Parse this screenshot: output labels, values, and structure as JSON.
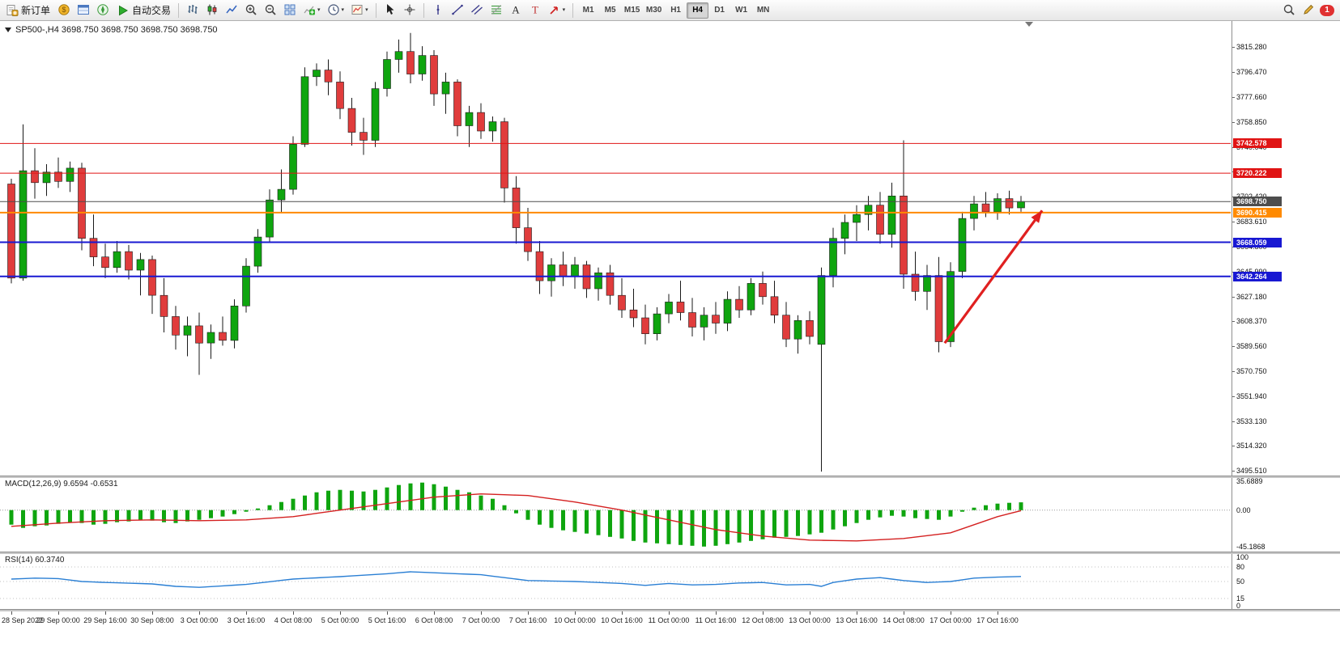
{
  "window": {
    "notification_count": "1"
  },
  "toolbar": {
    "new_order": {
      "label": "新订单",
      "icon": "new-order-icon"
    },
    "standard_icons": [
      {
        "name": "market-watch-icon"
      },
      {
        "name": "data-window-icon"
      },
      {
        "name": "navigator-icon"
      }
    ],
    "auto_trading": {
      "label": "自动交易",
      "icon": "autotrade-play-icon"
    },
    "chart_icons": [
      {
        "name": "bar-chart-icon"
      },
      {
        "name": "candlestick-chart-icon"
      },
      {
        "name": "line-chart-icon"
      },
      {
        "name": "zoom-in-icon"
      },
      {
        "name": "zoom-out-icon"
      },
      {
        "name": "tile-windows-icon"
      },
      {
        "name": "indicators-icon",
        "dropdown": true
      },
      {
        "name": "periods-icon",
        "dropdown": true
      },
      {
        "name": "templates-icon",
        "dropdown": true
      }
    ],
    "pointer_icons": [
      {
        "name": "cursor-icon"
      },
      {
        "name": "crosshair-icon"
      }
    ],
    "line_tool_icons": [
      {
        "name": "vertical-line-icon"
      },
      {
        "name": "trendline-icon"
      },
      {
        "name": "channel-icon"
      },
      {
        "name": "fibonacci-icon"
      },
      {
        "name": "text-icon"
      },
      {
        "name": "label-icon"
      },
      {
        "name": "arrows-icon",
        "dropdown": true
      }
    ],
    "timeframes": [
      "M1",
      "M5",
      "M15",
      "M30",
      "H1",
      "H4",
      "D1",
      "W1",
      "MN"
    ],
    "active_timeframe": "H4",
    "right_icons": [
      {
        "name": "search-icon"
      },
      {
        "name": "edit-icon"
      }
    ]
  },
  "chart": {
    "title_text": "SP500-,H4 3698.750 3698.750 3698.750 3698.750"
  },
  "macd": {
    "label": "MACD(12,26,9) 9.6594 -0.6531",
    "scale_top": "35.6889",
    "scale_zero": "0.00",
    "scale_bottom": "-45.1868"
  },
  "rsi": {
    "label": "RSI(14) 60.3740",
    "scale": [
      "100",
      "80",
      "50",
      "15",
      "0"
    ],
    "levels": [
      80,
      50,
      15
    ]
  },
  "chart_data": {
    "type": "candlestick-with-indicators",
    "symbol": "SP500-",
    "timeframe": "H4",
    "price_range": [
      3492,
      3835
    ],
    "bars_per_label": 4,
    "time_labels": [
      "28 Sep 2022",
      "29 Sep 00:00",
      "29 Sep 16:00",
      "30 Sep 08:00",
      "3 Oct 00:00",
      "3 Oct 16:00",
      "4 Oct 08:00",
      "5 Oct 00:00",
      "5 Oct 16:00",
      "6 Oct 08:00",
      "7 Oct 00:00",
      "7 Oct 16:00",
      "10 Oct 00:00",
      "10 Oct 16:00",
      "11 Oct 00:00",
      "11 Oct 16:00",
      "12 Oct 08:00",
      "13 Oct 00:00",
      "13 Oct 16:00",
      "14 Oct 08:00",
      "17 Oct 00:00",
      "17 Oct 16:00"
    ],
    "price_axis_labels": [
      "3815.280",
      "3796.470",
      "3777.660",
      "3758.850",
      "3740.040",
      "3721.230",
      "3702.420",
      "3683.610",
      "3664.800",
      "3645.990",
      "3627.180",
      "3608.370",
      "3589.560",
      "3570.750",
      "3551.940",
      "3533.130",
      "3514.320",
      "3495.510"
    ],
    "levels": [
      {
        "price": 3742.578,
        "label": "3742.578",
        "color": "#e01414",
        "width": 1
      },
      {
        "price": 3720.222,
        "label": "3720.222",
        "color": "#e01414",
        "width": 1
      },
      {
        "price": 3698.75,
        "label": "3698.750",
        "color": "#4d4d4d",
        "width": 1,
        "role": "current-price-line"
      },
      {
        "price": 3690.415,
        "label": "3690.415",
        "color": "#ff8a00",
        "width": 2
      },
      {
        "price": 3668.059,
        "label": "3668.059",
        "color": "#1818d2",
        "width": 2
      },
      {
        "price": 3642.264,
        "label": "3642.264",
        "color": "#1818d2",
        "width": 2
      }
    ],
    "annotation_arrow": {
      "from_bar": 79.5,
      "from_price": 3592,
      "to_bar": 87.8,
      "to_price": 3692,
      "color": "#e02020"
    },
    "colors": {
      "up": "#0fa50f",
      "down": "#e03c3c",
      "wick": "#1a1a1a",
      "macd_hist": "#0fa50f",
      "macd_signal": "#d42020",
      "rsi_line": "#2a7fd4"
    },
    "candles": [
      [
        3712,
        3716,
        3637,
        3641
      ],
      [
        3641,
        3757,
        3639,
        3722
      ],
      [
        3722,
        3739,
        3701,
        3713
      ],
      [
        3713,
        3727,
        3703,
        3721
      ],
      [
        3721,
        3732,
        3709,
        3714
      ],
      [
        3714,
        3729,
        3706,
        3724
      ],
      [
        3724,
        3728,
        3662,
        3671
      ],
      [
        3671,
        3689,
        3650,
        3657
      ],
      [
        3657,
        3667,
        3641,
        3649
      ],
      [
        3649,
        3669,
        3645,
        3661
      ],
      [
        3661,
        3666,
        3640,
        3647
      ],
      [
        3647,
        3660,
        3628,
        3655
      ],
      [
        3655,
        3658,
        3614,
        3628
      ],
      [
        3628,
        3641,
        3600,
        3612
      ],
      [
        3612,
        3620,
        3587,
        3598
      ],
      [
        3598,
        3612,
        3582,
        3605
      ],
      [
        3605,
        3615,
        3568,
        3592
      ],
      [
        3592,
        3606,
        3580,
        3600
      ],
      [
        3600,
        3612,
        3590,
        3594
      ],
      [
        3594,
        3625,
        3588,
        3620
      ],
      [
        3620,
        3656,
        3615,
        3650
      ],
      [
        3650,
        3678,
        3645,
        3672
      ],
      [
        3672,
        3708,
        3668,
        3700
      ],
      [
        3700,
        3723,
        3690,
        3708
      ],
      [
        3708,
        3748,
        3704,
        3742
      ],
      [
        3742,
        3800,
        3740,
        3793
      ],
      [
        3793,
        3803,
        3786,
        3798
      ],
      [
        3798,
        3806,
        3779,
        3789
      ],
      [
        3789,
        3797,
        3761,
        3769
      ],
      [
        3769,
        3777,
        3741,
        3751
      ],
      [
        3751,
        3762,
        3734,
        3745
      ],
      [
        3745,
        3789,
        3740,
        3784
      ],
      [
        3784,
        3812,
        3778,
        3806
      ],
      [
        3806,
        3821,
        3796,
        3812
      ],
      [
        3812,
        3826,
        3788,
        3795
      ],
      [
        3795,
        3816,
        3790,
        3809
      ],
      [
        3809,
        3813,
        3771,
        3780
      ],
      [
        3780,
        3796,
        3765,
        3789
      ],
      [
        3789,
        3791,
        3748,
        3756
      ],
      [
        3756,
        3771,
        3740,
        3766
      ],
      [
        3766,
        3773,
        3746,
        3752
      ],
      [
        3752,
        3763,
        3744,
        3759
      ],
      [
        3759,
        3762,
        3698,
        3709
      ],
      [
        3709,
        3718,
        3667,
        3679
      ],
      [
        3679,
        3694,
        3654,
        3661
      ],
      [
        3661,
        3669,
        3629,
        3639
      ],
      [
        3639,
        3656,
        3627,
        3651
      ],
      [
        3651,
        3661,
        3635,
        3642
      ],
      [
        3642,
        3657,
        3633,
        3651
      ],
      [
        3651,
        3654,
        3626,
        3633
      ],
      [
        3633,
        3649,
        3624,
        3645
      ],
      [
        3645,
        3651,
        3621,
        3628
      ],
      [
        3628,
        3641,
        3611,
        3617
      ],
      [
        3617,
        3633,
        3604,
        3611
      ],
      [
        3611,
        3621,
        3591,
        3599
      ],
      [
        3599,
        3619,
        3594,
        3614
      ],
      [
        3614,
        3629,
        3607,
        3623
      ],
      [
        3623,
        3639,
        3609,
        3615
      ],
      [
        3615,
        3626,
        3597,
        3604
      ],
      [
        3604,
        3619,
        3594,
        3613
      ],
      [
        3613,
        3623,
        3599,
        3607
      ],
      [
        3607,
        3631,
        3601,
        3625
      ],
      [
        3625,
        3635,
        3611,
        3617
      ],
      [
        3617,
        3641,
        3613,
        3637
      ],
      [
        3637,
        3646,
        3621,
        3627
      ],
      [
        3627,
        3639,
        3607,
        3613
      ],
      [
        3613,
        3623,
        3589,
        3595
      ],
      [
        3595,
        3613,
        3584,
        3609
      ],
      [
        3609,
        3616,
        3591,
        3597
      ],
      [
        3591,
        3649,
        3495,
        3643
      ],
      [
        3643,
        3679,
        3634,
        3671
      ],
      [
        3671,
        3689,
        3659,
        3683
      ],
      [
        3683,
        3696,
        3669,
        3689
      ],
      [
        3689,
        3703,
        3677,
        3696
      ],
      [
        3696,
        3706,
        3667,
        3674
      ],
      [
        3674,
        3713,
        3664,
        3703
      ],
      [
        3703,
        3745,
        3633,
        3644
      ],
      [
        3644,
        3661,
        3624,
        3631
      ],
      [
        3631,
        3651,
        3617,
        3643
      ],
      [
        3643,
        3657,
        3585,
        3593
      ],
      [
        3593,
        3653,
        3589,
        3646
      ],
      [
        3646,
        3691,
        3641,
        3686
      ],
      [
        3686,
        3703,
        3677,
        3697
      ],
      [
        3697,
        3706,
        3687,
        3691
      ],
      [
        3691,
        3705,
        3685,
        3701
      ],
      [
        3701,
        3707,
        3689,
        3694
      ],
      [
        3694,
        3703,
        3691,
        3698.75
      ]
    ],
    "macd": {
      "hist": [
        -18,
        -22,
        -20,
        -19,
        -17,
        -15,
        -16,
        -18,
        -17,
        -15,
        -14,
        -12,
        -13,
        -15,
        -16,
        -14,
        -12,
        -10,
        -8,
        -5,
        -2,
        2,
        6,
        10,
        14,
        18,
        22,
        24,
        25,
        24,
        23,
        25,
        28,
        31,
        33,
        34,
        32,
        29,
        25,
        22,
        18,
        14,
        6,
        -4,
        -12,
        -18,
        -22,
        -25,
        -27,
        -29,
        -31,
        -33,
        -35,
        -38,
        -40,
        -41,
        -42,
        -43,
        -44,
        -45,
        -44,
        -42,
        -40,
        -38,
        -36,
        -34,
        -33,
        -32,
        -30,
        -28,
        -24,
        -20,
        -16,
        -12,
        -9,
        -7,
        -8,
        -10,
        -11,
        -12,
        -8,
        -2,
        3,
        6,
        8,
        9,
        9.6594
      ],
      "signal": [
        -20,
        -19,
        -18,
        -17,
        -16,
        -15.3,
        -14.5,
        -13.8,
        -13,
        -12.8,
        -12.5,
        -12.3,
        -12,
        -12.3,
        -12.5,
        -12.8,
        -13,
        -12.8,
        -12.5,
        -12.3,
        -12,
        -11,
        -10,
        -9,
        -8,
        -6,
        -4,
        -2,
        0,
        2,
        4,
        6,
        8,
        10,
        12,
        14,
        16,
        17,
        18,
        19,
        20,
        19.5,
        19,
        18.5,
        18,
        16,
        14,
        12,
        10,
        7.5,
        5,
        2.5,
        0,
        -3,
        -6,
        -9,
        -12,
        -15,
        -18,
        -21,
        -24,
        -26,
        -28,
        -30,
        -32,
        -33.3,
        -34.5,
        -35.8,
        -37,
        -37.3,
        -37.5,
        -37.8,
        -38,
        -37.3,
        -36.5,
        -35.8,
        -35,
        -33.3,
        -31.5,
        -29.8,
        -28,
        -23,
        -18,
        -13,
        -8,
        -4.3,
        -0.6531
      ]
    },
    "rsi_values": [
      55,
      56,
      57,
      56.5,
      56,
      53,
      50,
      49,
      48,
      47.3,
      46.5,
      45.8,
      45,
      42.5,
      40,
      39,
      38,
      39.5,
      41,
      42.5,
      44,
      46.8,
      49.5,
      52.3,
      55,
      56.3,
      57.5,
      58.8,
      60,
      61.5,
      63,
      64.5,
      66,
      68,
      70,
      69,
      68,
      67,
      66,
      65,
      64,
      61,
      58,
      55,
      52,
      51.5,
      51,
      50.5,
      50,
      49,
      48,
      47,
      46,
      44,
      42,
      44,
      46,
      44.5,
      43,
      43.5,
      44,
      45.5,
      47,
      47.5,
      48,
      45.5,
      43,
      43.5,
      44,
      40,
      48,
      51.5,
      55,
      56.5,
      58,
      55,
      52,
      50,
      48,
      49,
      50,
      53.5,
      57,
      58,
      59,
      59.7,
      60.374
    ]
  }
}
